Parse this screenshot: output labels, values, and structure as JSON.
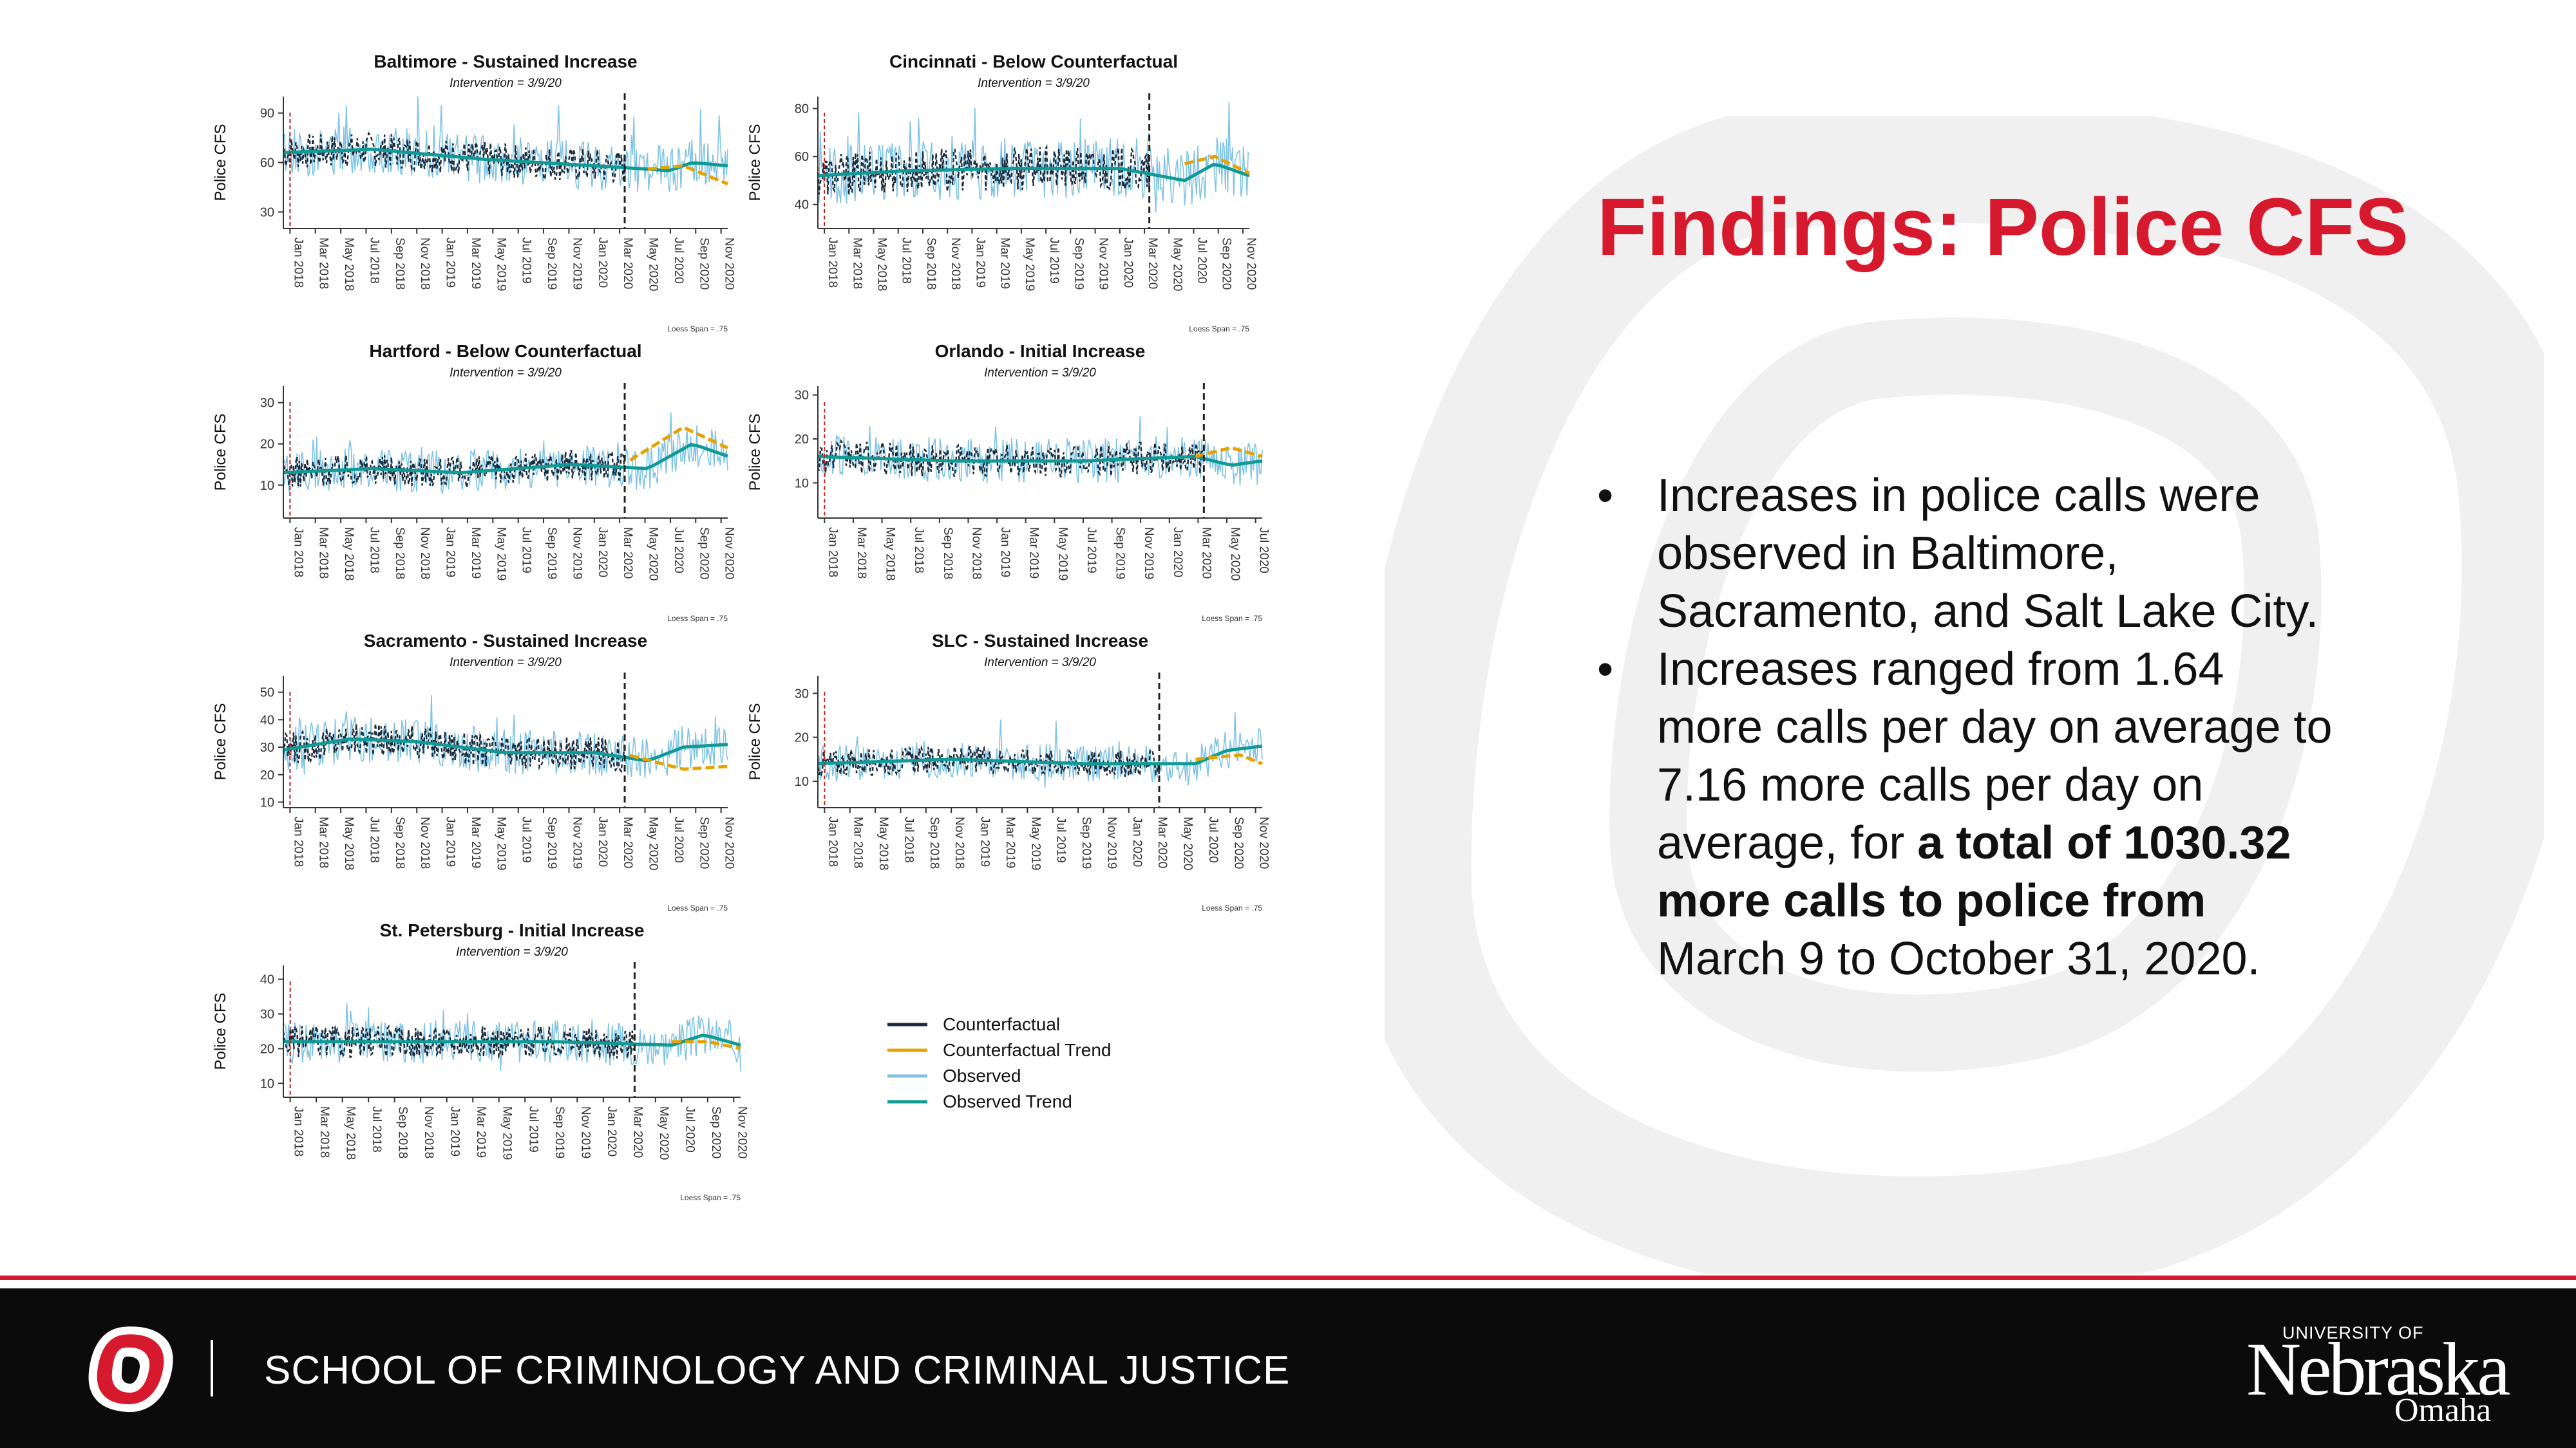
{
  "slide": {
    "title": "Findings: Police CFS",
    "bullet1": "Increases in police calls were observed in Baltimore, Sacramento, and Salt Lake City.",
    "bullet2_pre": "Increases ranged from 1.64 more calls per day on average to 7.16 more calls per day on average, for ",
    "bullet2_bold": "a total of 1030.32 more calls to police from",
    "bullet2_post": " March 9 to October 31, 2020."
  },
  "footer": {
    "school": "SCHOOL OF CRIMINOLOGY AND CRIMINAL JUSTICE",
    "uni_small": "UNIVERSITY OF",
    "uni_main": "Nebraska",
    "uni_sub": "Omaha"
  },
  "colors": {
    "red": "#d7192d",
    "counterfactual": "#1b2a3a",
    "cf_trend": "#e8a200",
    "observed": "#7ec3e3",
    "obs_trend": "#0f9a96"
  },
  "legend": [
    "Counterfactual",
    "Counterfactual Trend",
    "Observed",
    "Observed Trend"
  ],
  "chart_data": [
    {
      "type": "line",
      "title": "Baltimore - Sustained Increase",
      "subtitle": "Intervention = 3/9/20",
      "ylabel": "Police CFS",
      "yticks": [
        30,
        60,
        90
      ],
      "ylim": [
        20,
        100
      ],
      "xticks": [
        "Jan 2018",
        "Mar 2018",
        "May 2018",
        "Jul 2018",
        "Sep 2018",
        "Nov 2018",
        "Jan 2019",
        "Mar 2019",
        "May 2019",
        "Jul 2019",
        "Sep 2019",
        "Nov 2019",
        "Jan 2020",
        "Mar 2020",
        "May 2020",
        "Jul 2020",
        "Sep 2020",
        "Nov 2020"
      ],
      "intervention": "2020-03-09",
      "note": "Loess Span = .75",
      "base": 62,
      "amp": 14,
      "obs_trend": [
        [
          0,
          66
        ],
        [
          0.2,
          68
        ],
        [
          0.45,
          62
        ],
        [
          0.7,
          58
        ],
        [
          0.82,
          56
        ],
        [
          0.87,
          55
        ],
        [
          0.92,
          60
        ],
        [
          1,
          58
        ]
      ],
      "cf_trend": [
        [
          0.82,
          56
        ],
        [
          0.9,
          58
        ],
        [
          1,
          47
        ]
      ]
    },
    {
      "type": "line",
      "title": "Cincinnati - Below Counterfactual",
      "subtitle": "Intervention = 3/9/20",
      "ylabel": "Police CFS",
      "yticks": [
        40,
        60,
        80
      ],
      "ylim": [
        30,
        85
      ],
      "xticks": [
        "Jan 2018",
        "Mar 2018",
        "May 2018",
        "Jul 2018",
        "Sep 2018",
        "Nov 2018",
        "Jan 2019",
        "Mar 2019",
        "May 2019",
        "Jul 2019",
        "Sep 2019",
        "Nov 2019",
        "Jan 2020",
        "Mar 2020",
        "May 2020",
        "Jul 2020",
        "Sep 2020",
        "Nov 2020"
      ],
      "intervention": "2020-03-09",
      "note": "Loess Span = .75",
      "base": 55,
      "amp": 12,
      "obs_trend": [
        [
          0,
          52
        ],
        [
          0.2,
          54
        ],
        [
          0.45,
          55
        ],
        [
          0.7,
          55
        ],
        [
          0.85,
          50
        ],
        [
          0.92,
          57
        ],
        [
          1,
          52
        ]
      ],
      "cf_trend": [
        [
          0.85,
          57
        ],
        [
          0.92,
          60
        ],
        [
          1,
          53
        ]
      ]
    },
    {
      "type": "line",
      "title": "Hartford - Below Counterfactual",
      "subtitle": "Intervention = 3/9/20",
      "ylabel": "Police CFS",
      "yticks": [
        10,
        20,
        30
      ],
      "ylim": [
        2,
        34
      ],
      "xticks": [
        "Jan 2018",
        "Mar 2018",
        "May 2018",
        "Jul 2018",
        "Sep 2018",
        "Nov 2018",
        "Jan 2019",
        "Mar 2019",
        "May 2019",
        "Jul 2019",
        "Sep 2019",
        "Nov 2019",
        "Jan 2020",
        "Mar 2020",
        "May 2020",
        "Jul 2020",
        "Sep 2020",
        "Nov 2020"
      ],
      "intervention": "2020-03-09",
      "note": "Loess Span = .75",
      "base": 14,
      "amp": 5,
      "obs_trend": [
        [
          0,
          13
        ],
        [
          0.2,
          14
        ],
        [
          0.4,
          13
        ],
        [
          0.65,
          15
        ],
        [
          0.82,
          14
        ],
        [
          0.92,
          20
        ],
        [
          1,
          17
        ]
      ],
      "cf_trend": [
        [
          0.78,
          16
        ],
        [
          0.9,
          24
        ],
        [
          1,
          19
        ]
      ]
    },
    {
      "type": "line",
      "title": "Orlando - Initial Increase",
      "subtitle": "Intervention = 3/9/20",
      "ylabel": "Police CFS",
      "yticks": [
        10,
        20,
        30
      ],
      "ylim": [
        2,
        32
      ],
      "xticks": [
        "Jan 2018",
        "Mar 2018",
        "May 2018",
        "Jul 2018",
        "Sep 2018",
        "Nov 2018",
        "Jan 2019",
        "Mar 2019",
        "May 2019",
        "Jul 2019",
        "Sep 2019",
        "Nov 2019",
        "Jan 2020",
        "Mar 2020",
        "May 2020",
        "Jul 2020"
      ],
      "intervention": "2020-03-09",
      "note": "Loess Span = .75",
      "base": 15,
      "amp": 5,
      "obs_trend": [
        [
          0,
          16
        ],
        [
          0.3,
          15
        ],
        [
          0.6,
          15
        ],
        [
          0.85,
          16
        ],
        [
          0.93,
          14
        ],
        [
          1,
          15
        ]
      ],
      "cf_trend": [
        [
          0.85,
          16
        ],
        [
          0.93,
          18
        ],
        [
          1,
          16
        ]
      ]
    },
    {
      "type": "line",
      "title": "Sacramento - Sustained Increase",
      "subtitle": "Intervention = 3/9/20",
      "ylabel": "Police CFS",
      "yticks": [
        10,
        20,
        30,
        40,
        50
      ],
      "ylim": [
        8,
        56
      ],
      "xticks": [
        "Jan 2018",
        "Mar 2018",
        "May 2018",
        "Jul 2018",
        "Sep 2018",
        "Nov 2018",
        "Jan 2019",
        "Mar 2019",
        "May 2019",
        "Jul 2019",
        "Sep 2019",
        "Nov 2019",
        "Jan 2020",
        "Mar 2020",
        "May 2020",
        "Jul 2020",
        "Sep 2020",
        "Nov 2020"
      ],
      "intervention": "2020-03-09",
      "note": "Loess Span = .75",
      "base": 30,
      "amp": 8,
      "obs_trend": [
        [
          0,
          29
        ],
        [
          0.15,
          33
        ],
        [
          0.3,
          32
        ],
        [
          0.5,
          28
        ],
        [
          0.7,
          28
        ],
        [
          0.82,
          25
        ],
        [
          0.9,
          30
        ],
        [
          1,
          31
        ]
      ],
      "cf_trend": [
        [
          0.78,
          27
        ],
        [
          0.9,
          22
        ],
        [
          1,
          23
        ]
      ]
    },
    {
      "type": "line",
      "title": "SLC - Sustained Increase",
      "subtitle": "Intervention = 3/9/20",
      "ylabel": "Police CFS",
      "yticks": [
        10,
        20,
        30
      ],
      "ylim": [
        4,
        34
      ],
      "xticks": [
        "Jan 2018",
        "Mar 2018",
        "May 2018",
        "Jul 2018",
        "Sep 2018",
        "Nov 2018",
        "Jan 2019",
        "Mar 2019",
        "May 2019",
        "Jul 2019",
        "Sep 2019",
        "Nov 2019",
        "Jan 2020",
        "Mar 2020",
        "May 2020",
        "Jul 2020",
        "Sep 2020",
        "Nov 2020"
      ],
      "intervention": "2020-03-09",
      "note": "Loess Span = .75",
      "base": 14,
      "amp": 4,
      "obs_trend": [
        [
          0,
          14
        ],
        [
          0.3,
          15
        ],
        [
          0.6,
          14
        ],
        [
          0.85,
          14
        ],
        [
          0.92,
          17
        ],
        [
          1,
          18
        ]
      ],
      "cf_trend": [
        [
          0.85,
          15
        ],
        [
          0.95,
          16
        ],
        [
          1,
          14
        ]
      ]
    },
    {
      "type": "line",
      "title": "St. Petersburg - Initial Increase",
      "subtitle": "Intervention = 3/9/20",
      "ylabel": "Police CFS",
      "yticks": [
        10,
        20,
        30,
        40
      ],
      "ylim": [
        6,
        44
      ],
      "xticks": [
        "Jan 2018",
        "Mar 2018",
        "May 2018",
        "Jul 2018",
        "Sep 2018",
        "Nov 2018",
        "Jan 2019",
        "Mar 2019",
        "May 2019",
        "Jul 2019",
        "Sep 2019",
        "Nov 2019",
        "Jan 2020",
        "Mar 2020",
        "May 2020",
        "Jul 2020",
        "Sep 2020",
        "Nov 2020"
      ],
      "intervention": "2020-03-09",
      "note": "Loess Span = .75",
      "base": 22,
      "amp": 6,
      "obs_trend": [
        [
          0,
          22
        ],
        [
          0.3,
          22
        ],
        [
          0.6,
          22
        ],
        [
          0.85,
          21
        ],
        [
          0.92,
          24
        ],
        [
          1,
          21
        ]
      ],
      "cf_trend": [
        [
          0.85,
          22
        ],
        [
          0.93,
          22
        ],
        [
          1,
          20
        ]
      ]
    }
  ]
}
